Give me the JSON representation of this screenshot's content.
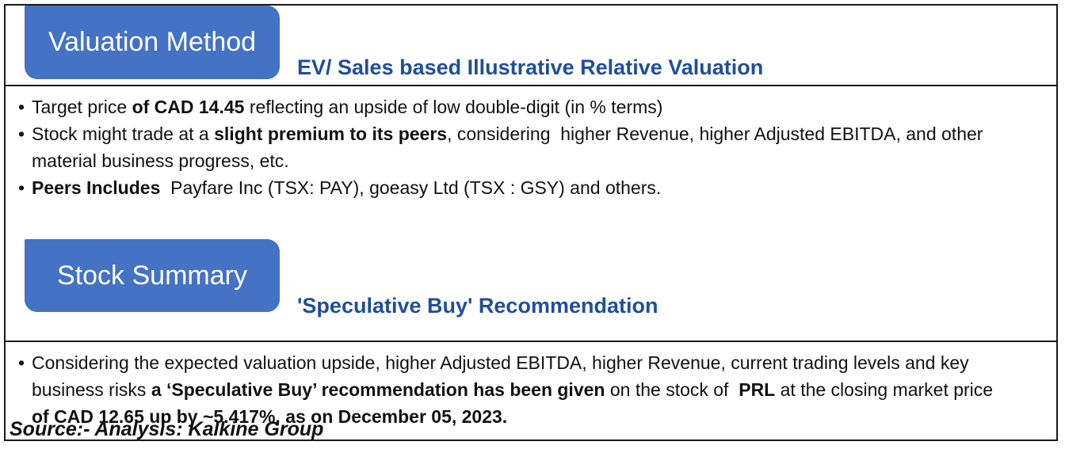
{
  "colors": {
    "tab_background": "#4472C4",
    "heading_text": "#1F4E9C",
    "border": "#1a1a1a"
  },
  "sections": [
    {
      "tab_label": "Valuation Method",
      "heading": "EV/ Sales based Illustrative Relative Valuation",
      "bullets": [
        [
          {
            "text": "Target price ",
            "bold": false
          },
          {
            "text": "of CAD 14.45",
            "bold": true
          },
          {
            "text": " reflecting an upside of low double-digit (in % terms)",
            "bold": false
          }
        ],
        [
          {
            "text": "Stock might trade at a ",
            "bold": false
          },
          {
            "text": "slight premium to its peers",
            "bold": true
          },
          {
            "text": ", considering  higher Revenue, higher Adjusted EBITDA, and other material business progress, etc.",
            "bold": false
          }
        ],
        [
          {
            "text": "Peers Includes",
            "bold": true
          },
          {
            "text": "  Payfare Inc (TSX: PAY), goeasy Ltd (TSX : GSY) and others.",
            "bold": false
          }
        ]
      ]
    },
    {
      "tab_label": "Stock Summary",
      "heading": "'Speculative Buy' Recommendation",
      "bullets": [
        [
          {
            "text": "Considering the expected valuation upside, higher Adjusted EBITDA, higher Revenue, current trading levels and key business risks ",
            "bold": false
          },
          {
            "text": "a ‘Speculative Buy’ recommendation has been given",
            "bold": true
          },
          {
            "text": " on the stock of  ",
            "bold": false
          },
          {
            "text": "PRL",
            "bold": true
          },
          {
            "text": " at the closing market price ",
            "bold": false
          },
          {
            "text": "of CAD 12.65 up by ~5.417%, as on December 05, 2023.",
            "bold": true
          }
        ]
      ]
    }
  ],
  "source_note": "Source:- Analysis: Kalkine Group"
}
